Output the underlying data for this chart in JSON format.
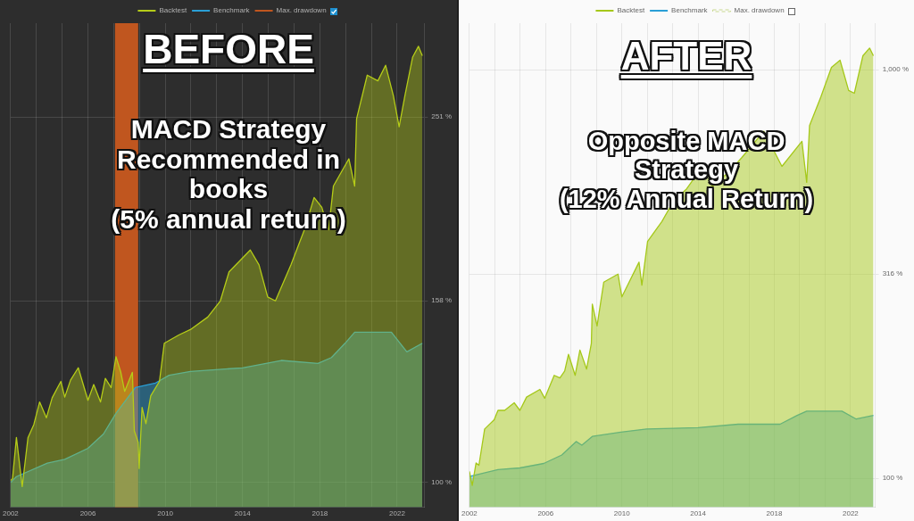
{
  "chart_data": [
    {
      "type": "area",
      "title": "BEFORE",
      "subtitle": "MACD Strategy\nRecommended in\nbooks\n(5% annual return)",
      "log": true,
      "grid": true,
      "legend": "top",
      "xlim": [
        2002,
        2023.4
      ],
      "ylim": [
        94,
        318
      ],
      "xticks": [
        2002,
        {
          "value": 2003.33,
          "label": null
        },
        {
          "value": 2004.67,
          "label": null
        },
        2006,
        {
          "value": 2007.33,
          "label": null
        },
        {
          "value": 2008.67,
          "label": null
        },
        2010,
        {
          "value": 2011.33,
          "label": null
        },
        {
          "value": 2012.67,
          "label": null
        },
        2014,
        {
          "value": 2015.33,
          "label": null
        },
        {
          "value": 2016.67,
          "label": null
        },
        2018,
        {
          "value": 2019.33,
          "label": null
        },
        {
          "value": 2020.67,
          "label": null
        },
        2022
      ],
      "yticks": [
        {
          "value": 100,
          "label": "100 %"
        },
        {
          "value": 158,
          "label": "158 %"
        },
        {
          "value": 251,
          "label": "251 %"
        }
      ],
      "bands": [
        {
          "axis": "x",
          "from": 2007.4,
          "to": 2008.6,
          "label": "Max. drawdown",
          "color": "#c0561f"
        }
      ],
      "series": [
        {
          "name": "Backtest",
          "color": "#b5cc18",
          "x": [
            2002.0,
            2002.1,
            2002.3,
            2002.6,
            2002.9,
            2003.2,
            2003.5,
            2003.85,
            2004.15,
            2004.6,
            2004.8,
            2005.1,
            2005.5,
            2006.0,
            2006.3,
            2006.65,
            2006.9,
            2007.2,
            2007.45,
            2007.7,
            2007.9,
            2008.3,
            2008.4,
            2008.6,
            2008.65,
            2008.8,
            2009.0,
            2009.25,
            2009.7,
            2009.95,
            2010.7,
            2011.3,
            2012.2,
            2012.85,
            2013.3,
            2014.4,
            2014.85,
            2015.3,
            2015.7,
            2016.5,
            2017.2,
            2017.7,
            2018.1,
            2018.45,
            2018.7,
            2019.5,
            2019.8,
            2019.9,
            2020.45,
            2021.0,
            2021.4,
            2021.8,
            2022.1,
            2022.4,
            2022.8,
            2023.1,
            2023.3
          ],
          "values": [
            100.5,
            101,
            112,
            99,
            112,
            115.7,
            122.5,
            117.7,
            123.8,
            129,
            124,
            129.4,
            133.5,
            123,
            128,
            122.5,
            130,
            127,
            137.3,
            132,
            125.8,
            132,
            113.9,
            110.7,
            103.6,
            120.8,
            116,
            124.4,
            129,
            142,
            145,
            147,
            151.7,
            158,
            170,
            179.6,
            173,
            159.6,
            158,
            173,
            189,
            205,
            200,
            189,
            211,
            226,
            211,
            250,
            279,
            275,
            286,
            265,
            245,
            265,
            292,
            300,
            293
          ]
        },
        {
          "name": "Benchmark",
          "color": "#2a9fd6",
          "x": [
            2002.0,
            2002.3,
            2003.9,
            2004.8,
            2006.0,
            2006.8,
            2007.45,
            2008.45,
            2009.5,
            2010.2,
            2011.3,
            2014.0,
            2016.0,
            2017.9,
            2018.6,
            2019.3,
            2019.8,
            2021.7,
            2022.5,
            2023.3
          ],
          "values": [
            100,
            101.5,
            105,
            106,
            109,
            113,
            119,
            127,
            128.5,
            131,
            132.3,
            133.5,
            136,
            135,
            137,
            142,
            146,
            146,
            139,
            142
          ]
        }
      ]
    },
    {
      "type": "area",
      "title": "AFTER",
      "subtitle": "Opposite MACD\nStrategy\n(12% Annual Return)",
      "log": true,
      "grid": true,
      "legend": "top",
      "xlim": [
        2002,
        2023.3
      ],
      "ylim": [
        85,
        1300
      ],
      "xticks": [
        2002,
        {
          "value": 2003.33,
          "label": null
        },
        {
          "value": 2004.67,
          "label": null
        },
        2006,
        {
          "value": 2007.33,
          "label": null
        },
        {
          "value": 2008.67,
          "label": null
        },
        2010,
        {
          "value": 2011.33,
          "label": null
        },
        {
          "value": 2012.67,
          "label": null
        },
        2014,
        {
          "value": 2015.33,
          "label": null
        },
        {
          "value": 2016.67,
          "label": null
        },
        2018,
        {
          "value": 2019.33,
          "label": null
        },
        {
          "value": 2020.67,
          "label": null
        },
        2022
      ],
      "yticks": [
        {
          "value": 100,
          "label": "100 %"
        },
        {
          "value": 316,
          "label": "316 %"
        },
        {
          "value": 1000,
          "label": "1,000 %"
        }
      ],
      "series": [
        {
          "name": "Backtest",
          "color": "#a5c81a",
          "x": [
            2002.0,
            2002.15,
            2002.35,
            2002.5,
            2002.8,
            2003.3,
            2003.5,
            2003.85,
            2004.35,
            2004.65,
            2005.0,
            2005.7,
            2005.95,
            2006.45,
            2006.75,
            2007.0,
            2007.2,
            2007.55,
            2007.8,
            2008.15,
            2008.4,
            2008.45,
            2008.7,
            2009.05,
            2009.8,
            2010.0,
            2010.9,
            2011.05,
            2011.35,
            2012.1,
            2012.7,
            2013.4,
            2014.05,
            2014.55,
            2014.75,
            2015.65,
            2016.3,
            2017.45,
            2018.4,
            2019.45,
            2019.7,
            2019.85,
            2020.45,
            2021.0,
            2021.45,
            2021.9,
            2022.2,
            2022.65,
            2023.0,
            2023.2
          ],
          "values": [
            104,
            96,
            109,
            107.6,
            132,
            139,
            146.6,
            146.6,
            153,
            146.6,
            158,
            165,
            157,
            178.6,
            176,
            183,
            201,
            178.6,
            206,
            185,
            214,
            267,
            236,
            302,
            316,
            278,
            338,
            297,
            380,
            425,
            476,
            511,
            564,
            552,
            518,
            564,
            610,
            707,
            580,
            668,
            530,
            730,
            860,
            1014,
            1055,
            890,
            876,
            1082,
            1130,
            1082
          ]
        },
        {
          "name": "Benchmark",
          "color": "#2a9fd6",
          "x": [
            2002.0,
            2003.5,
            2004.65,
            2005.9,
            2006.85,
            2007.6,
            2007.9,
            2008.45,
            2009.95,
            2011.3,
            2014.0,
            2016.1,
            2018.3,
            2019.2,
            2019.7,
            2021.55,
            2022.3,
            2023.2
          ],
          "values": [
            101,
            105,
            106,
            108.7,
            114,
            123,
            120.5,
            126.6,
            129.7,
            132,
            133,
            135.6,
            135.6,
            142.5,
            146,
            146,
            139.6,
            142.5
          ]
        },
        {
          "name": "Max. drawdown",
          "color": "#c8d890",
          "line_style": "dashed"
        }
      ]
    }
  ]
}
